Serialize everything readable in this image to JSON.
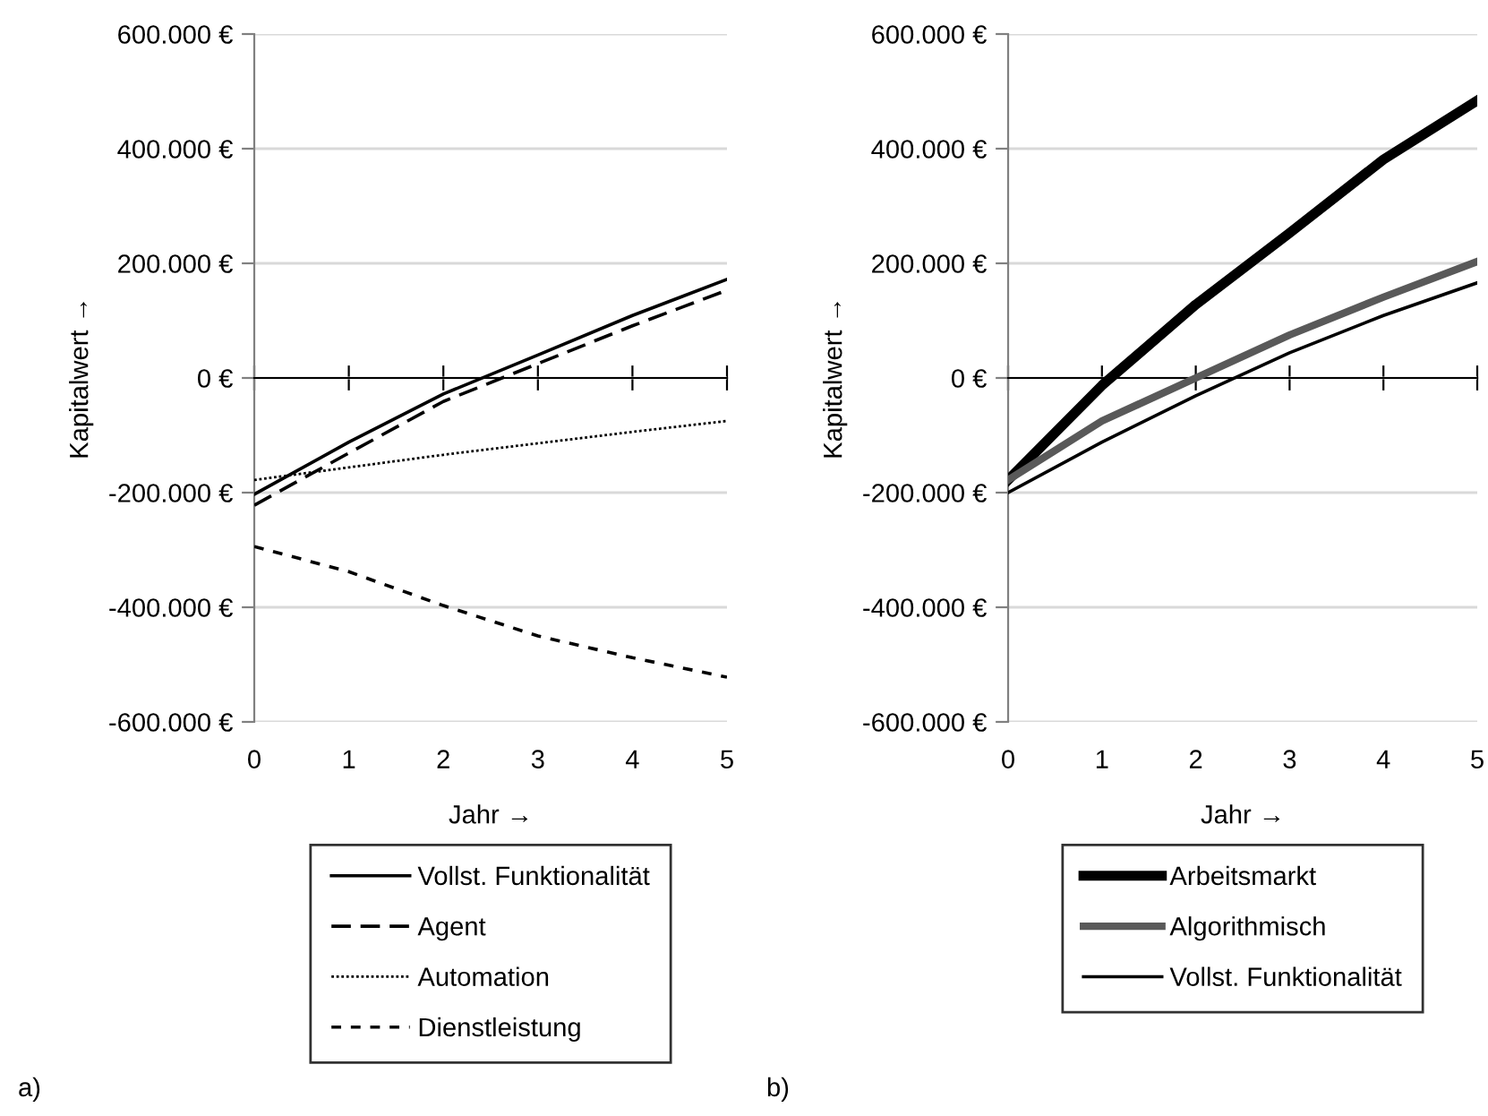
{
  "chart_data": [
    {
      "type": "line",
      "xlabel": "Jahr →",
      "ylabel": "Kapitalwert →",
      "x": [
        0,
        1,
        2,
        3,
        4,
        5
      ],
      "xlim": [
        0,
        5
      ],
      "xticks": [
        0,
        1,
        2,
        3,
        4,
        5
      ],
      "ylim": [
        -600000,
        600000
      ],
      "yticks": [
        {
          "value": -600000,
          "label": "-600.000 €"
        },
        {
          "value": -400000,
          "label": "-400.000 €"
        },
        {
          "value": -200000,
          "label": "-200.000 €"
        },
        {
          "value": 0,
          "label": "0 €"
        },
        {
          "value": 200000,
          "label": "200.000 €"
        },
        {
          "value": 400000,
          "label": "400.000 €"
        },
        {
          "value": 600000,
          "label": "600.000 €"
        }
      ],
      "grid": "y",
      "legend": "bottom",
      "marker": "none",
      "annotations": [
        "a)"
      ],
      "series": [
        {
          "name": "Vollst. Funktionalität",
          "color": "#000000",
          "line_style": "solid",
          "values": [
            -203000,
            -112000,
            -28000,
            40000,
            109000,
            172000
          ]
        },
        {
          "name": "Agent",
          "color": "#000000",
          "line_style": "dashed",
          "values": [
            -222000,
            -131000,
            -41000,
            25000,
            91000,
            153000
          ]
        },
        {
          "name": "Automation",
          "color": "#000000",
          "line_style": "dotted",
          "values": [
            -178000,
            -156000,
            -134000,
            -114000,
            -94000,
            -75000
          ]
        },
        {
          "name": "Dienstleistung",
          "color": "#000000",
          "line_style": "dashed",
          "values": [
            -294000,
            -338000,
            -397000,
            -450000,
            -488000,
            -522000
          ]
        }
      ]
    },
    {
      "type": "line",
      "xlabel": "Jahr →",
      "ylabel": "Kapitalwert →",
      "x": [
        0,
        1,
        2,
        3,
        4,
        5
      ],
      "xlim": [
        0,
        5
      ],
      "xticks": [
        0,
        1,
        2,
        3,
        4,
        5
      ],
      "ylim": [
        -600000,
        600000
      ],
      "yticks": [
        {
          "value": -600000,
          "label": "-600.000 €"
        },
        {
          "value": -400000,
          "label": "-400.000 €"
        },
        {
          "value": -200000,
          "label": "-200.000 €"
        },
        {
          "value": 0,
          "label": "0 €"
        },
        {
          "value": 200000,
          "label": "200.000 €"
        },
        {
          "value": 400000,
          "label": "400.000 €"
        },
        {
          "value": 600000,
          "label": "600.000 €"
        }
      ],
      "grid": "y",
      "legend": "bottom",
      "marker": "none",
      "annotations": [
        "b)"
      ],
      "series": [
        {
          "name": "Arbeitsmarkt",
          "color": "#000000",
          "line_style": "solid",
          "values": [
            -178000,
            -13000,
            128000,
            253000,
            381000,
            484000
          ]
        },
        {
          "name": "Algorithmisch",
          "color": "#595959",
          "line_style": "solid",
          "values": [
            -178000,
            -75000,
            0,
            75000,
            141000,
            203000
          ]
        },
        {
          "name": "Vollst. Funktionalität",
          "color": "#000000",
          "line_style": "solid",
          "values": [
            -200000,
            -112000,
            -31000,
            44000,
            109000,
            166000
          ]
        }
      ]
    }
  ]
}
